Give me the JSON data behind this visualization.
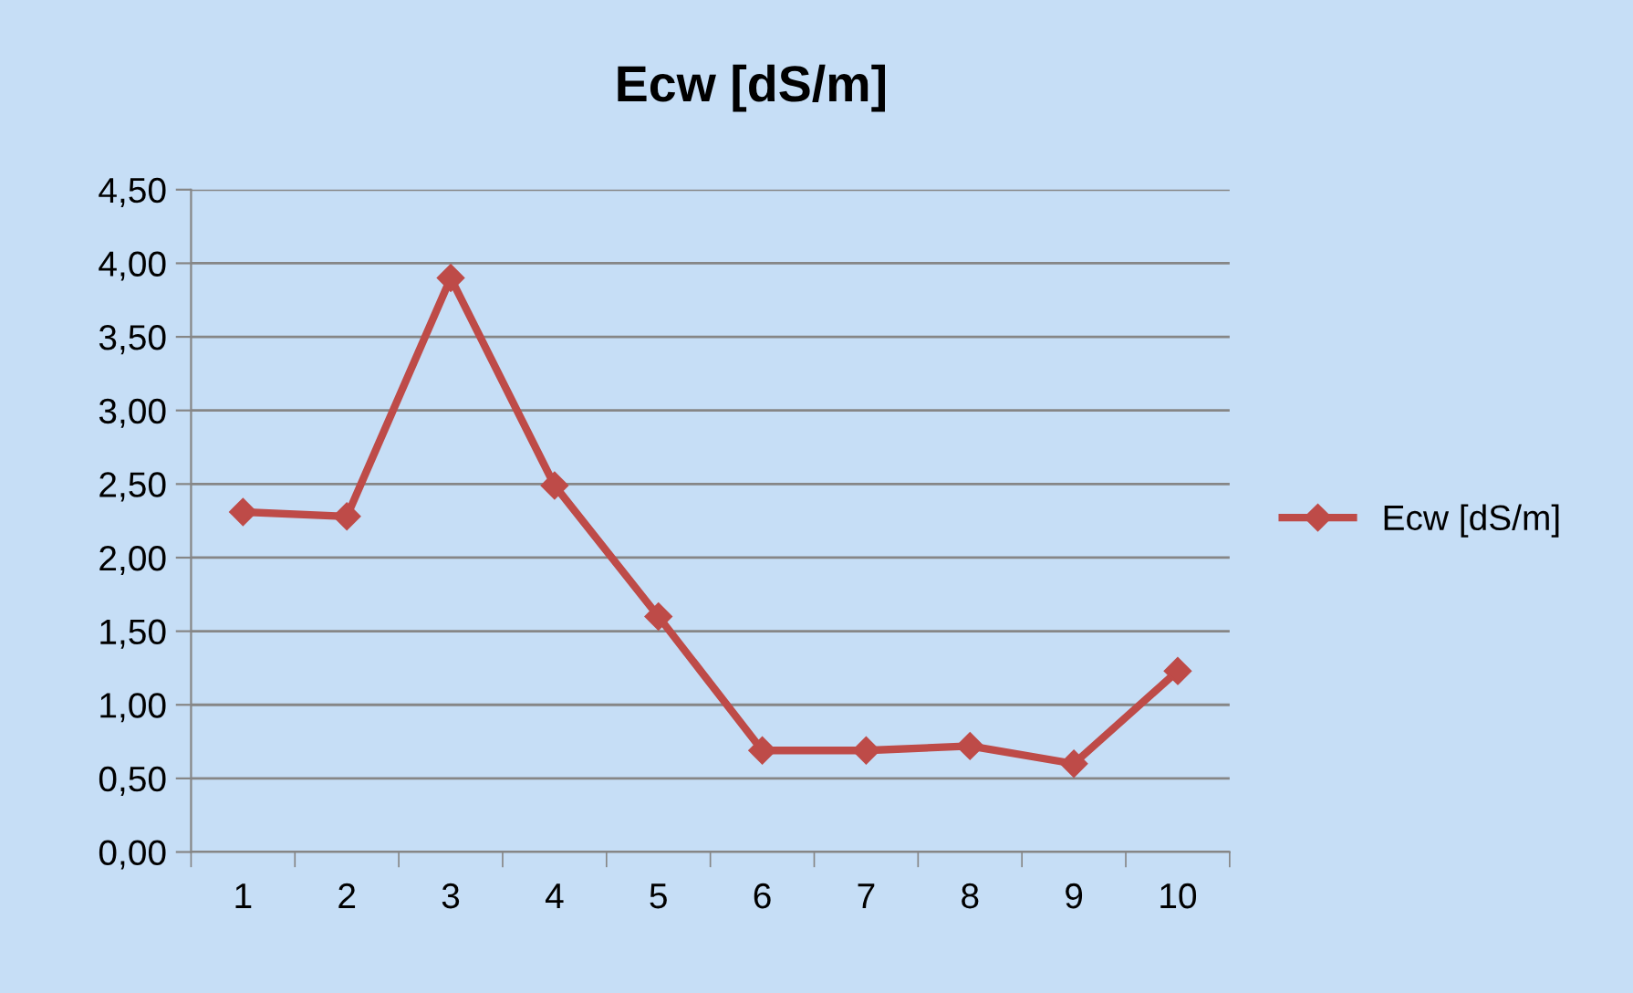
{
  "chart_data": {
    "type": "line",
    "title": "Ecw [dS/m]",
    "categories": [
      "1",
      "2",
      "3",
      "4",
      "5",
      "6",
      "7",
      "8",
      "9",
      "10"
    ],
    "series": [
      {
        "name": "Ecw [dS/m]",
        "color": "#be4b48",
        "values": [
          2.31,
          2.28,
          3.9,
          2.49,
          1.6,
          0.69,
          0.69,
          0.72,
          0.6,
          1.23
        ]
      }
    ],
    "ylim": [
      0,
      4.5
    ],
    "yticks": [
      {
        "value": 0,
        "label": "0,00"
      },
      {
        "value": 0.5,
        "label": "0,50"
      },
      {
        "value": 1,
        "label": "1,00"
      },
      {
        "value": 1.5,
        "label": "1,50"
      },
      {
        "value": 2,
        "label": "2,00"
      },
      {
        "value": 2.5,
        "label": "2,50"
      },
      {
        "value": 3,
        "label": "3,00"
      },
      {
        "value": 3.5,
        "label": "3,50"
      },
      {
        "value": 4,
        "label": "4,00"
      },
      {
        "value": 4.5,
        "label": "4,50"
      }
    ],
    "grid": "y",
    "legend": "right",
    "marker": "diamond",
    "line_style": "solid"
  }
}
